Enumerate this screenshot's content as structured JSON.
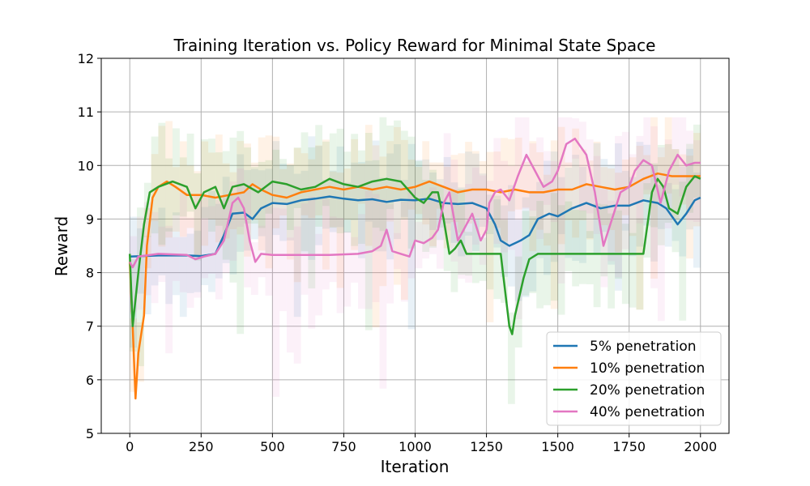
{
  "chart_data": {
    "type": "line",
    "title": "Training Iteration vs. Policy Reward for Minimal State Space",
    "xlabel": "Iteration",
    "ylabel": "Reward",
    "xlim": [
      -100,
      2100
    ],
    "ylim": [
      5,
      12
    ],
    "xticks": [
      0,
      250,
      500,
      750,
      1000,
      1250,
      1500,
      1750,
      2000
    ],
    "yticks": [
      5,
      6,
      7,
      8,
      9,
      10,
      11,
      12
    ],
    "grid": true,
    "legend_position": "lower-right",
    "shaded_bands": true,
    "series": [
      {
        "name": "5% penetration",
        "color": "#1f77b4",
        "points": [
          [
            0,
            8.3
          ],
          [
            100,
            8.32
          ],
          [
            200,
            8.32
          ],
          [
            250,
            8.31
          ],
          [
            300,
            8.35
          ],
          [
            330,
            8.7
          ],
          [
            360,
            9.1
          ],
          [
            400,
            9.12
          ],
          [
            430,
            9.0
          ],
          [
            460,
            9.2
          ],
          [
            500,
            9.3
          ],
          [
            550,
            9.28
          ],
          [
            600,
            9.35
          ],
          [
            650,
            9.38
          ],
          [
            700,
            9.42
          ],
          [
            750,
            9.38
          ],
          [
            800,
            9.35
          ],
          [
            850,
            9.37
          ],
          [
            900,
            9.32
          ],
          [
            950,
            9.36
          ],
          [
            1000,
            9.35
          ],
          [
            1050,
            9.38
          ],
          [
            1100,
            9.3
          ],
          [
            1150,
            9.28
          ],
          [
            1200,
            9.3
          ],
          [
            1250,
            9.2
          ],
          [
            1280,
            8.9
          ],
          [
            1300,
            8.6
          ],
          [
            1330,
            8.5
          ],
          [
            1370,
            8.6
          ],
          [
            1400,
            8.7
          ],
          [
            1430,
            9.0
          ],
          [
            1470,
            9.1
          ],
          [
            1500,
            9.05
          ],
          [
            1550,
            9.2
          ],
          [
            1600,
            9.3
          ],
          [
            1650,
            9.2
          ],
          [
            1700,
            9.25
          ],
          [
            1750,
            9.25
          ],
          [
            1800,
            9.35
          ],
          [
            1850,
            9.3
          ],
          [
            1880,
            9.2
          ],
          [
            1920,
            8.9
          ],
          [
            1950,
            9.1
          ],
          [
            1980,
            9.35
          ],
          [
            2000,
            9.4
          ]
        ]
      },
      {
        "name": "10% penetration",
        "color": "#ff7f0e",
        "points": [
          [
            0,
            8.2
          ],
          [
            10,
            7.0
          ],
          [
            20,
            5.65
          ],
          [
            30,
            6.5
          ],
          [
            50,
            7.2
          ],
          [
            60,
            8.5
          ],
          [
            80,
            9.4
          ],
          [
            100,
            9.6
          ],
          [
            130,
            9.7
          ],
          [
            160,
            9.6
          ],
          [
            200,
            9.45
          ],
          [
            250,
            9.45
          ],
          [
            300,
            9.4
          ],
          [
            350,
            9.45
          ],
          [
            400,
            9.5
          ],
          [
            430,
            9.65
          ],
          [
            460,
            9.55
          ],
          [
            500,
            9.45
          ],
          [
            550,
            9.4
          ],
          [
            600,
            9.5
          ],
          [
            650,
            9.55
          ],
          [
            700,
            9.6
          ],
          [
            750,
            9.55
          ],
          [
            800,
            9.6
          ],
          [
            850,
            9.55
          ],
          [
            900,
            9.6
          ],
          [
            950,
            9.55
          ],
          [
            1000,
            9.6
          ],
          [
            1050,
            9.7
          ],
          [
            1100,
            9.6
          ],
          [
            1150,
            9.5
          ],
          [
            1200,
            9.55
          ],
          [
            1250,
            9.55
          ],
          [
            1300,
            9.5
          ],
          [
            1350,
            9.55
          ],
          [
            1400,
            9.5
          ],
          [
            1450,
            9.5
          ],
          [
            1500,
            9.55
          ],
          [
            1550,
            9.55
          ],
          [
            1600,
            9.65
          ],
          [
            1650,
            9.6
          ],
          [
            1700,
            9.55
          ],
          [
            1750,
            9.6
          ],
          [
            1800,
            9.75
          ],
          [
            1850,
            9.85
          ],
          [
            1900,
            9.8
          ],
          [
            1950,
            9.8
          ],
          [
            2000,
            9.8
          ]
        ]
      },
      {
        "name": "20% penetration",
        "color": "#2ca02c",
        "points": [
          [
            0,
            8.35
          ],
          [
            10,
            7.0
          ],
          [
            30,
            8.0
          ],
          [
            50,
            8.9
          ],
          [
            70,
            9.5
          ],
          [
            100,
            9.6
          ],
          [
            150,
            9.7
          ],
          [
            200,
            9.6
          ],
          [
            230,
            9.2
          ],
          [
            260,
            9.5
          ],
          [
            300,
            9.6
          ],
          [
            330,
            9.2
          ],
          [
            360,
            9.6
          ],
          [
            400,
            9.65
          ],
          [
            450,
            9.5
          ],
          [
            500,
            9.7
          ],
          [
            550,
            9.65
          ],
          [
            600,
            9.55
          ],
          [
            650,
            9.6
          ],
          [
            700,
            9.75
          ],
          [
            750,
            9.65
          ],
          [
            800,
            9.6
          ],
          [
            850,
            9.7
          ],
          [
            900,
            9.75
          ],
          [
            950,
            9.7
          ],
          [
            1000,
            9.4
          ],
          [
            1030,
            9.3
          ],
          [
            1060,
            9.5
          ],
          [
            1080,
            9.5
          ],
          [
            1100,
            9.0
          ],
          [
            1120,
            8.35
          ],
          [
            1140,
            8.45
          ],
          [
            1160,
            8.6
          ],
          [
            1180,
            8.35
          ],
          [
            1200,
            8.35
          ],
          [
            1250,
            8.35
          ],
          [
            1300,
            8.35
          ],
          [
            1310,
            7.9
          ],
          [
            1330,
            7.0
          ],
          [
            1340,
            6.85
          ],
          [
            1350,
            7.2
          ],
          [
            1380,
            7.9
          ],
          [
            1400,
            8.25
          ],
          [
            1430,
            8.35
          ],
          [
            1500,
            8.35
          ],
          [
            1600,
            8.35
          ],
          [
            1700,
            8.35
          ],
          [
            1800,
            8.35
          ],
          [
            1830,
            9.5
          ],
          [
            1850,
            9.75
          ],
          [
            1870,
            9.6
          ],
          [
            1890,
            9.2
          ],
          [
            1920,
            9.1
          ],
          [
            1950,
            9.6
          ],
          [
            1980,
            9.8
          ],
          [
            2000,
            9.75
          ]
        ]
      },
      {
        "name": "40% penetration",
        "color": "#e377c2",
        "points": [
          [
            0,
            8.2
          ],
          [
            10,
            8.1
          ],
          [
            30,
            8.3
          ],
          [
            100,
            8.35
          ],
          [
            200,
            8.33
          ],
          [
            230,
            8.25
          ],
          [
            260,
            8.3
          ],
          [
            300,
            8.35
          ],
          [
            330,
            8.6
          ],
          [
            360,
            9.3
          ],
          [
            380,
            9.4
          ],
          [
            400,
            9.2
          ],
          [
            420,
            8.6
          ],
          [
            440,
            8.2
          ],
          [
            460,
            8.35
          ],
          [
            500,
            8.33
          ],
          [
            600,
            8.33
          ],
          [
            700,
            8.33
          ],
          [
            800,
            8.35
          ],
          [
            850,
            8.4
          ],
          [
            880,
            8.5
          ],
          [
            900,
            8.8
          ],
          [
            920,
            8.4
          ],
          [
            950,
            8.35
          ],
          [
            980,
            8.3
          ],
          [
            1000,
            8.6
          ],
          [
            1030,
            8.55
          ],
          [
            1060,
            8.65
          ],
          [
            1080,
            8.8
          ],
          [
            1100,
            9.3
          ],
          [
            1120,
            9.5
          ],
          [
            1150,
            8.6
          ],
          [
            1170,
            8.8
          ],
          [
            1200,
            9.1
          ],
          [
            1230,
            8.6
          ],
          [
            1250,
            8.8
          ],
          [
            1260,
            9.3
          ],
          [
            1280,
            9.5
          ],
          [
            1300,
            9.55
          ],
          [
            1330,
            9.35
          ],
          [
            1360,
            9.8
          ],
          [
            1390,
            10.2
          ],
          [
            1420,
            9.9
          ],
          [
            1450,
            9.6
          ],
          [
            1480,
            9.7
          ],
          [
            1500,
            9.9
          ],
          [
            1530,
            10.4
          ],
          [
            1560,
            10.5
          ],
          [
            1600,
            10.2
          ],
          [
            1630,
            9.5
          ],
          [
            1660,
            8.5
          ],
          [
            1690,
            9.0
          ],
          [
            1720,
            9.5
          ],
          [
            1750,
            9.6
          ],
          [
            1770,
            9.9
          ],
          [
            1800,
            10.1
          ],
          [
            1830,
            10.0
          ],
          [
            1860,
            9.3
          ],
          [
            1890,
            9.9
          ],
          [
            1920,
            10.2
          ],
          [
            1950,
            10.0
          ],
          [
            1980,
            10.05
          ],
          [
            2000,
            10.05
          ]
        ]
      }
    ]
  }
}
